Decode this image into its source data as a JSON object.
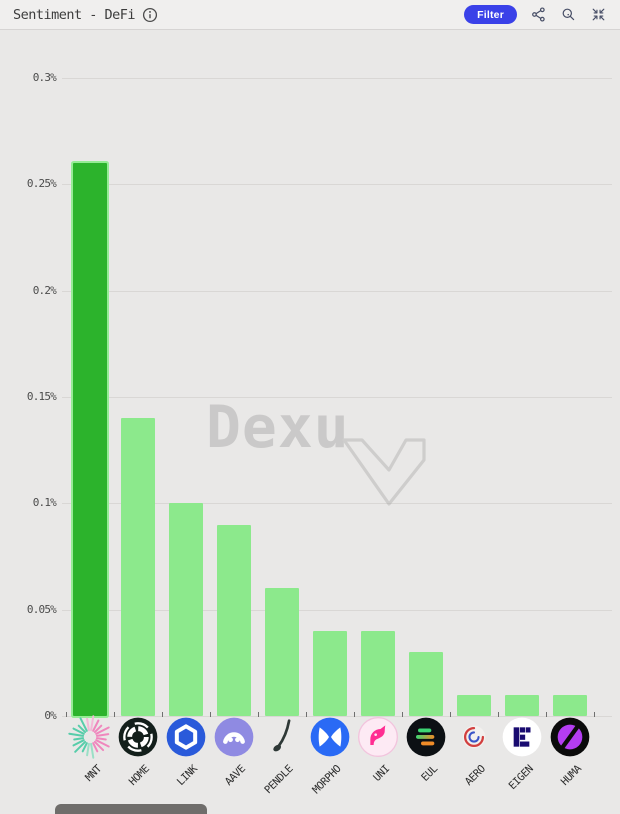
{
  "header": {
    "title": "Sentiment - DeFi",
    "filter_label": "Filter",
    "action_icons": [
      "share-icon",
      "zoom-icon",
      "collapse-icon"
    ]
  },
  "watermark": {
    "text": "Dexu"
  },
  "chart_data": {
    "type": "bar",
    "title": "Sentiment - DeFi",
    "categories": [
      "MNT",
      "HOME",
      "LINK",
      "AAVE",
      "PENDLE",
      "MORPHO",
      "UNI",
      "EUL",
      "AERO",
      "EIGEN",
      "HUMA"
    ],
    "values": [
      0.26,
      0.14,
      0.1,
      0.09,
      0.06,
      0.04,
      0.04,
      0.03,
      0.01,
      0.01,
      0.01
    ],
    "value_unit": "%",
    "xlabel": "",
    "ylabel": "",
    "ylim": [
      0,
      0.3
    ],
    "yticks": [
      "0%",
      "0.05%",
      "0.1%",
      "0.15%",
      "0.2%",
      "0.25%",
      "0.3%"
    ],
    "grid": true,
    "legend": false,
    "bar_color": "#8ce98c",
    "highlight_color": "#2cb32c",
    "highlight_index": 0,
    "icons": [
      "mnt-burst-icon",
      "home-target-icon",
      "link-hexagon-icon",
      "aave-ghost-icon",
      "pendle-pin-icon",
      "morpho-butterfly-icon",
      "uni-unicorn-icon",
      "euler-lines-icon",
      "aero-swirl-icon",
      "eigen-pixel-icon",
      "huma-disc-icon"
    ]
  },
  "colors": {
    "accent": "#3a41e8",
    "background": "#e9e8e7",
    "bar": "#8ce98c",
    "bar_highlight": "#2cb32c",
    "gridline": "#d9d7d5"
  }
}
